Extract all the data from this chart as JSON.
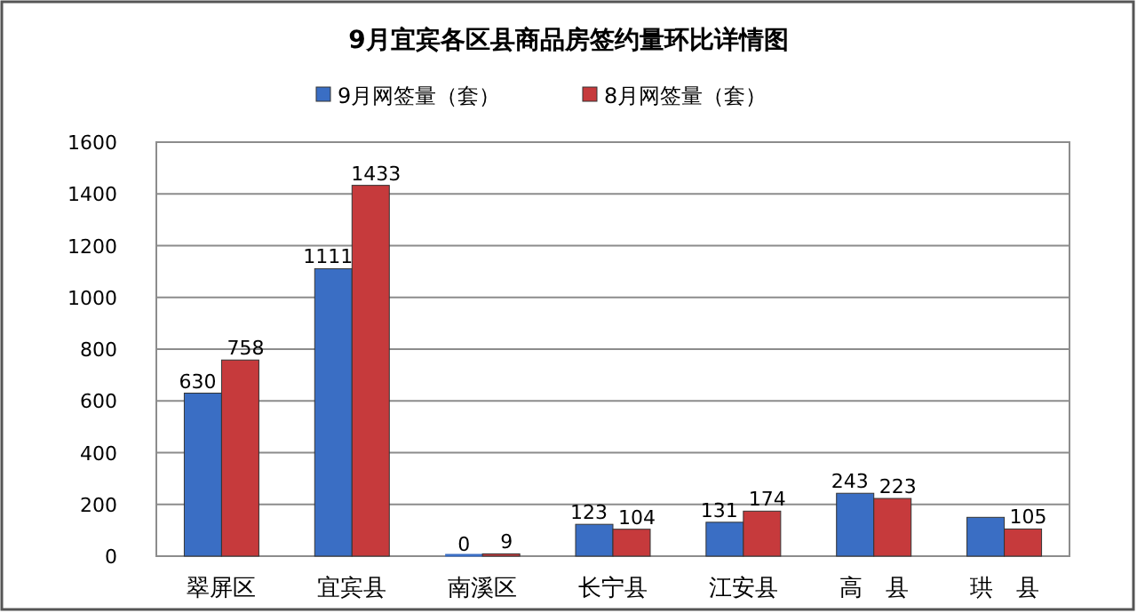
{
  "chart_data": {
    "type": "bar",
    "title": "9月宜宾各区县商品房签约量环比详情图",
    "categories": [
      "翠屏区",
      "宜宾县",
      "南溪区",
      "长宁县",
      "江安县",
      "高　县",
      "珙　县"
    ],
    "series": [
      {
        "name": "9月网签量（套）",
        "color": "#3a6ec4",
        "values": [
          630,
          1111,
          0,
          123,
          131,
          243,
          150
        ],
        "value_labels": [
          "630",
          "1111",
          "0",
          "123",
          "131",
          "243",
          null
        ]
      },
      {
        "name": "8月网签量（套）",
        "color": "#c63a3c",
        "values": [
          758,
          1433,
          9,
          104,
          174,
          223,
          105
        ],
        "value_labels": [
          "758",
          "1433",
          "9",
          "104",
          "174",
          "223",
          "105"
        ]
      }
    ],
    "ylim": [
      0,
      1600
    ],
    "yticks": [
      0,
      200,
      400,
      600,
      800,
      1000,
      1200,
      1400,
      1600
    ],
    "grid": "y",
    "legend": "top"
  }
}
